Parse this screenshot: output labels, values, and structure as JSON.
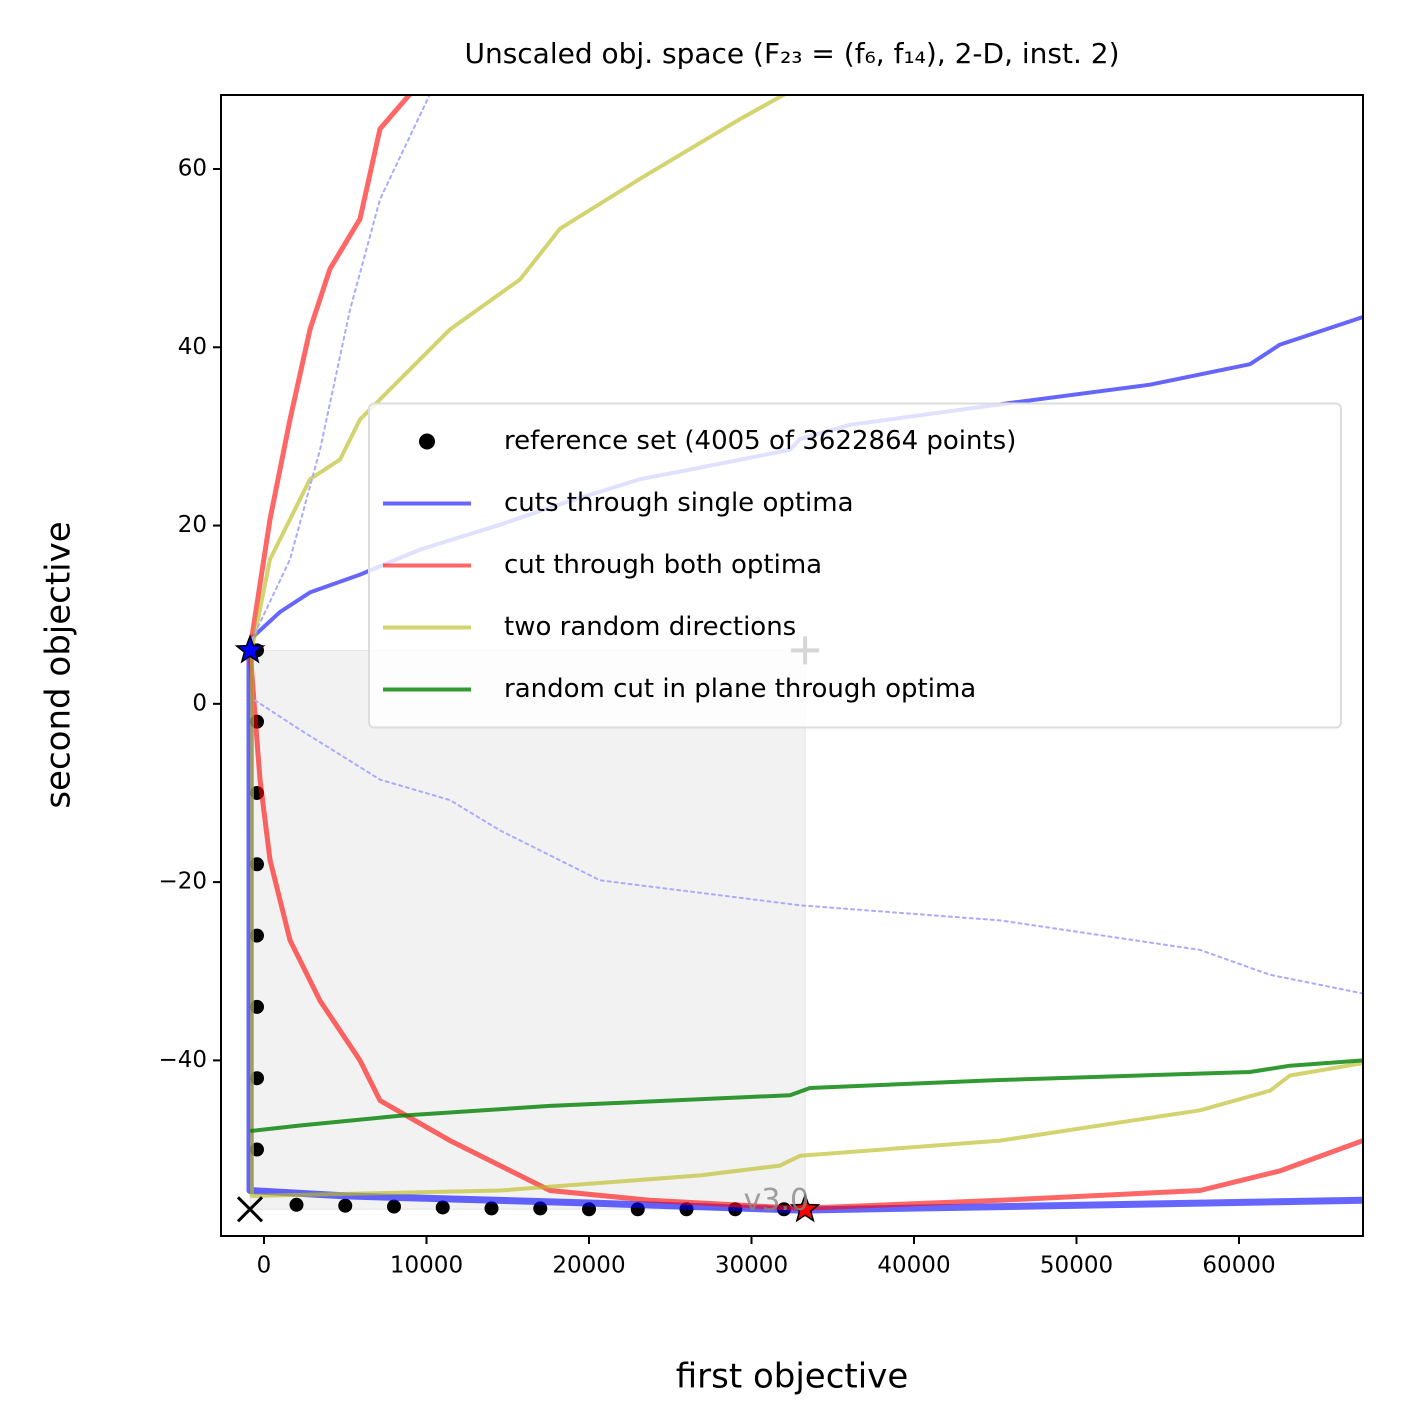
{
  "chart_data": {
    "type": "line",
    "title": "Unscaled obj. space (F₂₃ = (f₆, f₁₄), 2-D, inst. 2)",
    "x_label": "first objective",
    "y_label": "second objective",
    "xlim": [
      -2646,
      67630
    ],
    "ylim": [
      -59.7,
      68.3
    ],
    "xticks": [
      0,
      10000,
      20000,
      30000,
      40000,
      50000,
      60000
    ],
    "yticks": [
      {
        "value": -40,
        "label": "−40"
      },
      {
        "value": -20,
        "label": "−20"
      },
      0,
      20,
      40,
      60
    ],
    "legend": "center right",
    "annotation": "v3.0",
    "series": [
      {
        "name": "reference set (4005 of 3622864 points)",
        "color": "black",
        "alpha": 1,
        "marker": "o",
        "x": [
          -431,
          -431,
          -431,
          -431,
          -431,
          -431,
          -431,
          -431,
          2000,
          5000,
          8000,
          11000,
          14000,
          17000,
          20000,
          23000,
          26000,
          29000,
          32000,
          33300
        ],
        "values": [
          6,
          -2,
          -10,
          -18,
          -26,
          -34,
          -42,
          -50,
          -56.2,
          -56.3,
          -56.4,
          -56.5,
          -56.6,
          -56.6,
          -56.7,
          -56.7,
          -56.7,
          -56.7,
          -56.7,
          -56.7
        ]
      },
      {
        "name": "cuts through single optima",
        "color": "blue",
        "alpha": 0.6,
        "width": 4,
        "x": [
          -862,
          985,
          2831,
          5908,
          9600,
          14523,
          18215,
          23138,
          26831,
          32369,
          32985,
          36062,
          45292,
          54523,
          60677,
          62523,
          67631
        ],
        "values": [
          7.2,
          10.3,
          12.5,
          14.5,
          17.3,
          20.1,
          22.4,
          25.2,
          26.5,
          28.5,
          29.7,
          31.3,
          33.6,
          35.8,
          38.1,
          40.3,
          43.4
        ]
      },
      {
        "color": "blue",
        "alpha": 0.6,
        "width": 7,
        "x": [
          -862,
          -862,
          5000,
          20000,
          33000,
          67631
        ],
        "values": [
          6,
          -54.6,
          -55.2,
          -56,
          -56.8,
          -55.7
        ]
      },
      {
        "name": "cut through both optima",
        "color": "red",
        "alpha": 0.6,
        "width": 5,
        "x": [
          8985,
          7138,
          5908,
          4062,
          2831,
          1600,
          369,
          -862,
          -246,
          369,
          1600,
          3446,
          5908,
          7138,
          11446,
          17600,
          23754,
          32985,
          45292,
          57600,
          62523,
          67631
        ],
        "values": [
          68.4,
          64.5,
          54.4,
          48.8,
          42.0,
          31.9,
          20.7,
          6.1,
          -8.5,
          -17.5,
          -26.5,
          -33.3,
          -40.0,
          -44.5,
          -49.0,
          -54.6,
          -55.7,
          -56.6,
          -55.7,
          -54.6,
          -52.4,
          -49.0
        ]
      },
      {
        "name": "two random directions",
        "color": "#bcbd22",
        "alpha": 0.65,
        "width": 4,
        "x": [
          32062,
          29292,
          23138,
          18215,
          15754,
          11446,
          8369,
          5908,
          4677,
          2831,
          1600,
          369,
          -738,
          -738,
          14523,
          26831,
          31754,
          32985,
          45292,
          57600,
          61908,
          63138,
          67631
        ],
        "values": [
          68.4,
          65.6,
          58.9,
          53.3,
          47.6,
          42.0,
          36.4,
          31.9,
          27.4,
          25.2,
          20.7,
          16.2,
          6.1,
          -55.2,
          -54.6,
          -52.9,
          -51.8,
          -50.7,
          -49.0,
          -45.6,
          -43.4,
          -41.7,
          -40.3
        ]
      },
      {
        "name": "random cut in plane through optima",
        "color": "green",
        "alpha": 0.8,
        "width": 4,
        "x": [
          -738,
          2215,
          8369,
          17600,
          32369,
          33600,
          45292,
          60677,
          63138,
          67631
        ],
        "values": [
          -47.9,
          -47.3,
          -46.2,
          -45.1,
          -43.9,
          -43.1,
          -42.2,
          -41.3,
          -40.6,
          -40.0
        ]
      },
      {
        "color": "#aaaaff",
        "alpha": 1,
        "width": 2,
        "dash": "3,4",
        "x": [
          -738,
          1600,
          3446,
          5292,
          7138,
          10215
        ],
        "values": [
          7.2,
          16.2,
          28.5,
          44.2,
          56.6,
          68.4
        ]
      },
      {
        "color": "#aaaaff",
        "alpha": 1,
        "width": 2,
        "dash": "3,4",
        "x": [
          -554,
          2215,
          7138,
          11446,
          14523,
          20677,
          32985,
          45292,
          57600,
          61908,
          67631
        ],
        "values": [
          0.4,
          -2.9,
          -8.5,
          -10.8,
          -14.2,
          -19.8,
          -22.6,
          -24.3,
          -27.6,
          -30.4,
          -32.5
        ]
      }
    ],
    "points": [
      {
        "marker": "star",
        "color": "blue",
        "x": -862,
        "y": 6
      },
      {
        "marker": "star",
        "color": "red",
        "x": 33300,
        "y": -56.7
      },
      {
        "marker": "cross",
        "color": "black",
        "x": -862,
        "y": -56.7
      },
      {
        "marker": "plus",
        "color": "#333333",
        "x": 33300,
        "y": 6
      }
    ]
  }
}
